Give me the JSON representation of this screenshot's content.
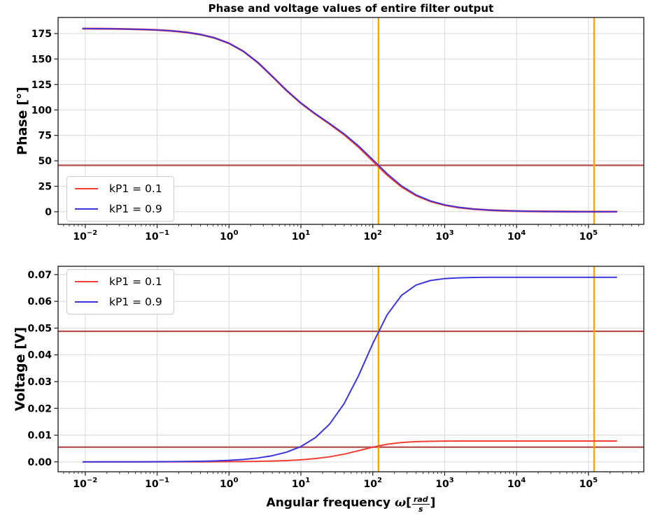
{
  "figure": {
    "title": "Phase and voltage values of entire filter output"
  },
  "chart_data": [
    {
      "type": "line",
      "title": "Phase and voltage values of entire filter output",
      "ylabel": "Phase [°]",
      "xscale": "log",
      "xlim_log10": [
        -2.378,
        5.77
      ],
      "ylim": [
        -12.4,
        190.8
      ],
      "xtick_exponents": [
        -2,
        -1,
        0,
        1,
        2,
        3,
        4,
        5
      ],
      "yticks": [
        0,
        25,
        50,
        75,
        100,
        125,
        150,
        175
      ],
      "ytick_format": "int",
      "grid": true,
      "legend_position": "lower-left",
      "x_log10": [
        -2.03,
        -1.8,
        -1.6,
        -1.4,
        -1.2,
        -1.0,
        -0.8,
        -0.6,
        -0.4,
        -0.2,
        0.0,
        0.2,
        0.4,
        0.6,
        0.8,
        1.0,
        1.2,
        1.4,
        1.6,
        1.8,
        2.0,
        2.2,
        2.4,
        2.6,
        2.8,
        3.0,
        3.2,
        3.4,
        3.6,
        3.8,
        4.0,
        4.2,
        4.4,
        4.6,
        4.8,
        5.0,
        5.2,
        5.39
      ],
      "series": [
        {
          "name": "kP1 = 0.1",
          "color": "#f23d34",
          "width": 2.8,
          "y": [
            179.86,
            179.76,
            179.63,
            179.41,
            179.06,
            178.51,
            177.64,
            176.27,
            174.11,
            170.71,
            165.44,
            157.56,
            146.56,
            133.07,
            119.09,
            106.61,
            95.99,
            86.2,
            75.84,
            63.79,
            50.02,
            36.21,
            24.54,
            16.03,
            10.27,
            6.51,
            4.11,
            2.61,
            1.66,
            1.03,
            0.65,
            0.41,
            0.26,
            0.16,
            0.1,
            0.06,
            0.04,
            0.03
          ]
        },
        {
          "name": "kP1 = 0.9",
          "color": "#3b35e0",
          "width": 1.8,
          "y": [
            179.86,
            179.76,
            179.63,
            179.41,
            179.06,
            178.52,
            177.65,
            176.28,
            174.12,
            170.72,
            165.46,
            157.59,
            146.61,
            133.15,
            119.22,
            106.81,
            96.31,
            86.69,
            76.59,
            64.79,
            51.19,
            37.32,
            25.44,
            16.65,
            10.67,
            6.77,
            4.28,
            2.7,
            1.71,
            1.08,
            0.68,
            0.44,
            0.27,
            0.18,
            0.1,
            0.07,
            0.04,
            0.03
          ]
        }
      ],
      "hlines": [
        {
          "y": 45.6,
          "color": "#b4504c",
          "width": 2.2
        }
      ],
      "vlines": [
        {
          "omega": 120,
          "color": "#ffa500",
          "width": 2.4
        },
        {
          "omega": 120000,
          "color": "#ffa500",
          "width": 2.4
        }
      ]
    },
    {
      "type": "line",
      "ylabel": "Voltage [V]",
      "xlabel_parts": {
        "prefix": "Angular frequency ",
        "omega": "ω",
        "bracket_open": "[",
        "frac_num": "rad",
        "frac_den": "s",
        "bracket_close": "]"
      },
      "xscale": "log",
      "xlim_log10": [
        -2.378,
        5.77
      ],
      "ylim": [
        -0.0037,
        0.0731
      ],
      "xtick_exponents": [
        -2,
        -1,
        0,
        1,
        2,
        3,
        4,
        5
      ],
      "yticks": [
        0.0,
        0.01,
        0.02,
        0.03,
        0.04,
        0.05,
        0.06,
        0.07
      ],
      "ytick_format": "fixed2",
      "grid": true,
      "legend_position": "upper-left",
      "x_log10": [
        -2.03,
        -1.8,
        -1.6,
        -1.4,
        -1.2,
        -1.0,
        -0.8,
        -0.6,
        -0.4,
        -0.2,
        0.0,
        0.2,
        0.4,
        0.6,
        0.8,
        1.0,
        1.2,
        1.4,
        1.6,
        1.8,
        2.0,
        2.2,
        2.4,
        2.6,
        2.8,
        3.0,
        3.2,
        3.4,
        3.6,
        3.8,
        4.0,
        4.2,
        4.4,
        4.6,
        4.8,
        5.0,
        5.2,
        5.39
      ],
      "series": [
        {
          "name": "kP1 = 0.1",
          "color": "#f23d34",
          "width": 2.0,
          "y": [
            1e-06,
            1e-06,
            2e-06,
            3e-06,
            5e-06,
            8e-06,
            1.2e-05,
            2e-05,
            3.1e-05,
            4.9e-05,
            7.8e-05,
            0.000124,
            0.000196,
            0.00031,
            0.000491,
            0.000776,
            0.001221,
            0.0019,
            0.002884,
            0.004163,
            0.005515,
            0.006595,
            0.007249,
            0.007567,
            0.007703,
            0.007761,
            0.007785,
            0.007794,
            0.007798,
            0.007799,
            0.0078,
            0.0078,
            0.0078,
            0.0078,
            0.0078,
            0.0078,
            0.0078,
            0.0078
          ]
        },
        {
          "name": "kP1 = 0.9",
          "color": "#3b35e0",
          "width": 2.0,
          "y": [
            5e-06,
            9e-06,
            1.4e-05,
            2.3e-05,
            3.6e-05,
            5.8e-05,
            9.1e-05,
            0.000144,
            0.000229,
            0.000363,
            0.000575,
            0.000911,
            0.001444,
            0.002288,
            0.003624,
            0.005729,
            0.009034,
            0.014133,
            0.021726,
            0.032103,
            0.044223,
            0.054987,
            0.062243,
            0.066069,
            0.067782,
            0.06851,
            0.068803,
            0.068922,
            0.068969,
            0.068988,
            0.068995,
            0.068998,
            0.068999,
            0.069,
            0.069,
            0.069,
            0.069,
            0.069
          ]
        }
      ],
      "hlines": [
        {
          "y": 0.0488,
          "color": "#b4504c",
          "width": 2.2
        },
        {
          "y": 0.0055,
          "color": "#b4504c",
          "width": 2.2
        }
      ],
      "vlines": [
        {
          "omega": 120,
          "color": "#ffa500",
          "width": 2.4
        },
        {
          "omega": 120000,
          "color": "#ffa500",
          "width": 2.4
        }
      ]
    }
  ],
  "style": {
    "grid_color": "#d8d8d8",
    "spine_color": "#262626",
    "tick_color": "#262626",
    "text_color": "#000000",
    "background": "#ffffff"
  }
}
